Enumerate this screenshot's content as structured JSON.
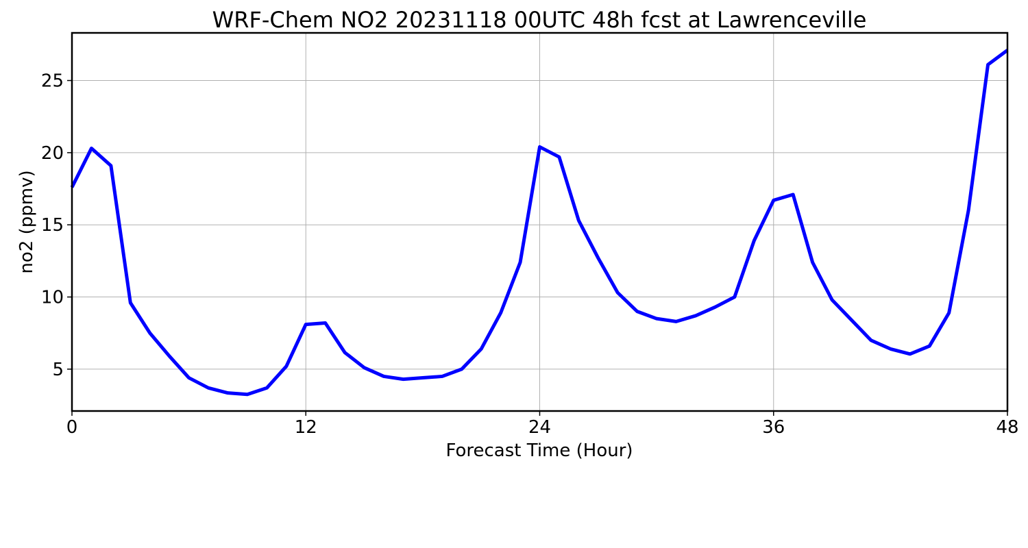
{
  "chart_data": {
    "type": "line",
    "title": "WRF-Chem NO2  20231118 00UTC 48h fcst at Lawrenceville",
    "xlabel": "Forecast Time (Hour)",
    "ylabel": "no2  (ppmv)",
    "xlim": [
      0,
      48
    ],
    "ylim": [
      2.1,
      28.3
    ],
    "xticks": [
      0,
      12,
      24,
      36,
      48
    ],
    "yticks": [
      5,
      10,
      15,
      20,
      25
    ],
    "grid": true,
    "series": [
      {
        "color": "#0000ff",
        "x": [
          0,
          1,
          2,
          3,
          4,
          5,
          6,
          7,
          8,
          9,
          10,
          11,
          12,
          13,
          14,
          15,
          16,
          17,
          18,
          19,
          20,
          21,
          22,
          23,
          24,
          25,
          26,
          27,
          28,
          29,
          30,
          31,
          32,
          33,
          34,
          35,
          36,
          37,
          38,
          39,
          40,
          41,
          42,
          43,
          44,
          45,
          46,
          47,
          48
        ],
        "values": [
          17.6,
          20.3,
          19.1,
          9.6,
          7.5,
          5.9,
          4.4,
          3.7,
          3.35,
          3.25,
          3.7,
          5.2,
          8.1,
          8.2,
          6.15,
          5.1,
          4.5,
          4.3,
          4.4,
          4.5,
          5.0,
          6.4,
          8.9,
          12.4,
          20.4,
          19.7,
          15.3,
          12.7,
          10.3,
          9.0,
          8.5,
          8.3,
          8.7,
          9.3,
          10.0,
          13.9,
          16.7,
          17.1,
          12.4,
          9.8,
          8.4,
          7.0,
          6.4,
          6.05,
          6.6,
          8.9,
          16.0,
          26.1,
          27.1
        ]
      }
    ]
  }
}
